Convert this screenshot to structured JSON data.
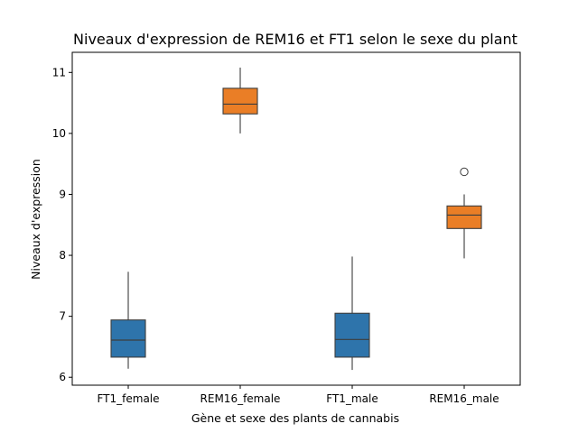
{
  "chart_data": {
    "type": "box",
    "title": "Niveaux d'expression de REM16 et FT1 selon le sexe du plant",
    "xlabel": "Gène et sexe des plants de cannabis",
    "ylabel": "Niveaux d'expression",
    "ylim": [
      5.87,
      11.33
    ],
    "yticks": [
      6,
      7,
      8,
      9,
      10,
      11
    ],
    "categories": [
      "FT1_female",
      "REM16_female",
      "FT1_male",
      "REM16_male"
    ],
    "grid": false,
    "legend": "none",
    "boxes": [
      {
        "category": "FT1_female",
        "gene": "FT1",
        "color": "#2e74ab",
        "whisker_low": 6.14,
        "q1": 6.33,
        "median": 6.61,
        "q3": 6.94,
        "whisker_high": 7.73,
        "outliers": []
      },
      {
        "category": "REM16_female",
        "gene": "REM16",
        "color": "#ea7e26",
        "whisker_low": 10.0,
        "q1": 10.32,
        "median": 10.48,
        "q3": 10.74,
        "whisker_high": 11.08,
        "outliers": []
      },
      {
        "category": "FT1_male",
        "gene": "FT1",
        "color": "#2e74ab",
        "whisker_low": 6.12,
        "q1": 6.33,
        "median": 6.62,
        "q3": 7.05,
        "whisker_high": 7.98,
        "outliers": []
      },
      {
        "category": "REM16_male",
        "gene": "REM16",
        "color": "#ea7e26",
        "whisker_low": 7.95,
        "q1": 8.44,
        "median": 8.66,
        "q3": 8.81,
        "whisker_high": 9.0,
        "outliers": [
          9.37
        ]
      }
    ]
  }
}
